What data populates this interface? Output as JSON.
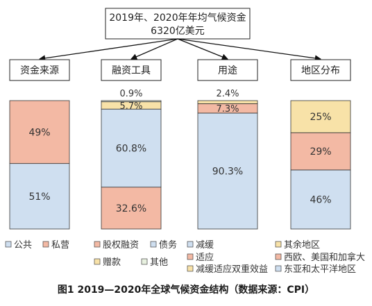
{
  "chart_data": {
    "type": "bar",
    "stacked": true,
    "root": {
      "line1": "2019年、2020年年均气候资金",
      "line2": "6320亿美元"
    },
    "categories": [
      "资金来源",
      "融资工具",
      "用途",
      "地区分布"
    ],
    "columns": [
      {
        "label": "资金来源",
        "segments": [
          {
            "name": "公共",
            "value": 51,
            "label": "51%",
            "color": "#cfdff0"
          },
          {
            "name": "私营",
            "value": 49,
            "label": "49%",
            "color": "#f3b9a4"
          }
        ]
      },
      {
        "label": "融资工具",
        "segments": [
          {
            "name": "股权融资",
            "value": 32.6,
            "label": "32.6%",
            "color": "#f3b9a4"
          },
          {
            "name": "债务",
            "value": 60.8,
            "label": "60.8%",
            "color": "#cfdff0"
          },
          {
            "name": "赠款",
            "value": 5.7,
            "label": "5.7%",
            "color": "#f8e2a8"
          },
          {
            "name": "其他",
            "value": 0.9,
            "label": "0.9%",
            "color": "#e8f1e0"
          }
        ]
      },
      {
        "label": "用途",
        "segments": [
          {
            "name": "减缓",
            "value": 90.3,
            "label": "90.3%",
            "color": "#cfdff0"
          },
          {
            "name": "适应",
            "value": 7.3,
            "label": "7.3%",
            "color": "#f3b9a4"
          },
          {
            "name": "减缓适应双重效益",
            "value": 2.4,
            "label": "2.4%",
            "color": "#f8e2a8"
          }
        ]
      },
      {
        "label": "地区分布",
        "segments": [
          {
            "name": "东亚和太平洋地区",
            "value": 46,
            "label": "46%",
            "color": "#cfdff0"
          },
          {
            "name": "西欧、美国和加拿大",
            "value": 29,
            "label": "29%",
            "color": "#f3b9a4"
          },
          {
            "name": "其余地区",
            "value": 25,
            "label": "25%",
            "color": "#f8e2a8"
          }
        ]
      }
    ],
    "legends": [
      {
        "items": [
          {
            "name": "公共",
            "color": "#cfdff0"
          },
          {
            "name": "私营",
            "color": "#f3b9a4"
          }
        ]
      },
      {
        "items": [
          {
            "name": "股权融资",
            "color": "#f3b9a4"
          },
          {
            "name": "债务",
            "color": "#cfdff0"
          },
          {
            "name": "赠款",
            "color": "#f8e2a8"
          },
          {
            "name": "其他",
            "color": "#e8f1e0"
          }
        ]
      },
      {
        "items": [
          {
            "name": "减缓",
            "color": "#cfdff0"
          },
          {
            "name": "适应",
            "color": "#f3b9a4"
          },
          {
            "name": "减缓适应双重效益",
            "color": "#f8e2a8"
          }
        ]
      },
      {
        "items": [
          {
            "name": "其余地区",
            "color": "#f8e2a8"
          },
          {
            "name": "西欧、美国和加拿大",
            "color": "#f3b9a4"
          },
          {
            "name": "东亚和太平洋地区",
            "color": "#cfdff0"
          }
        ]
      }
    ],
    "ylim": [
      0,
      100
    ],
    "caption": "图1   2019—2020年全球气候资金结构（数据来源：CPI）"
  }
}
